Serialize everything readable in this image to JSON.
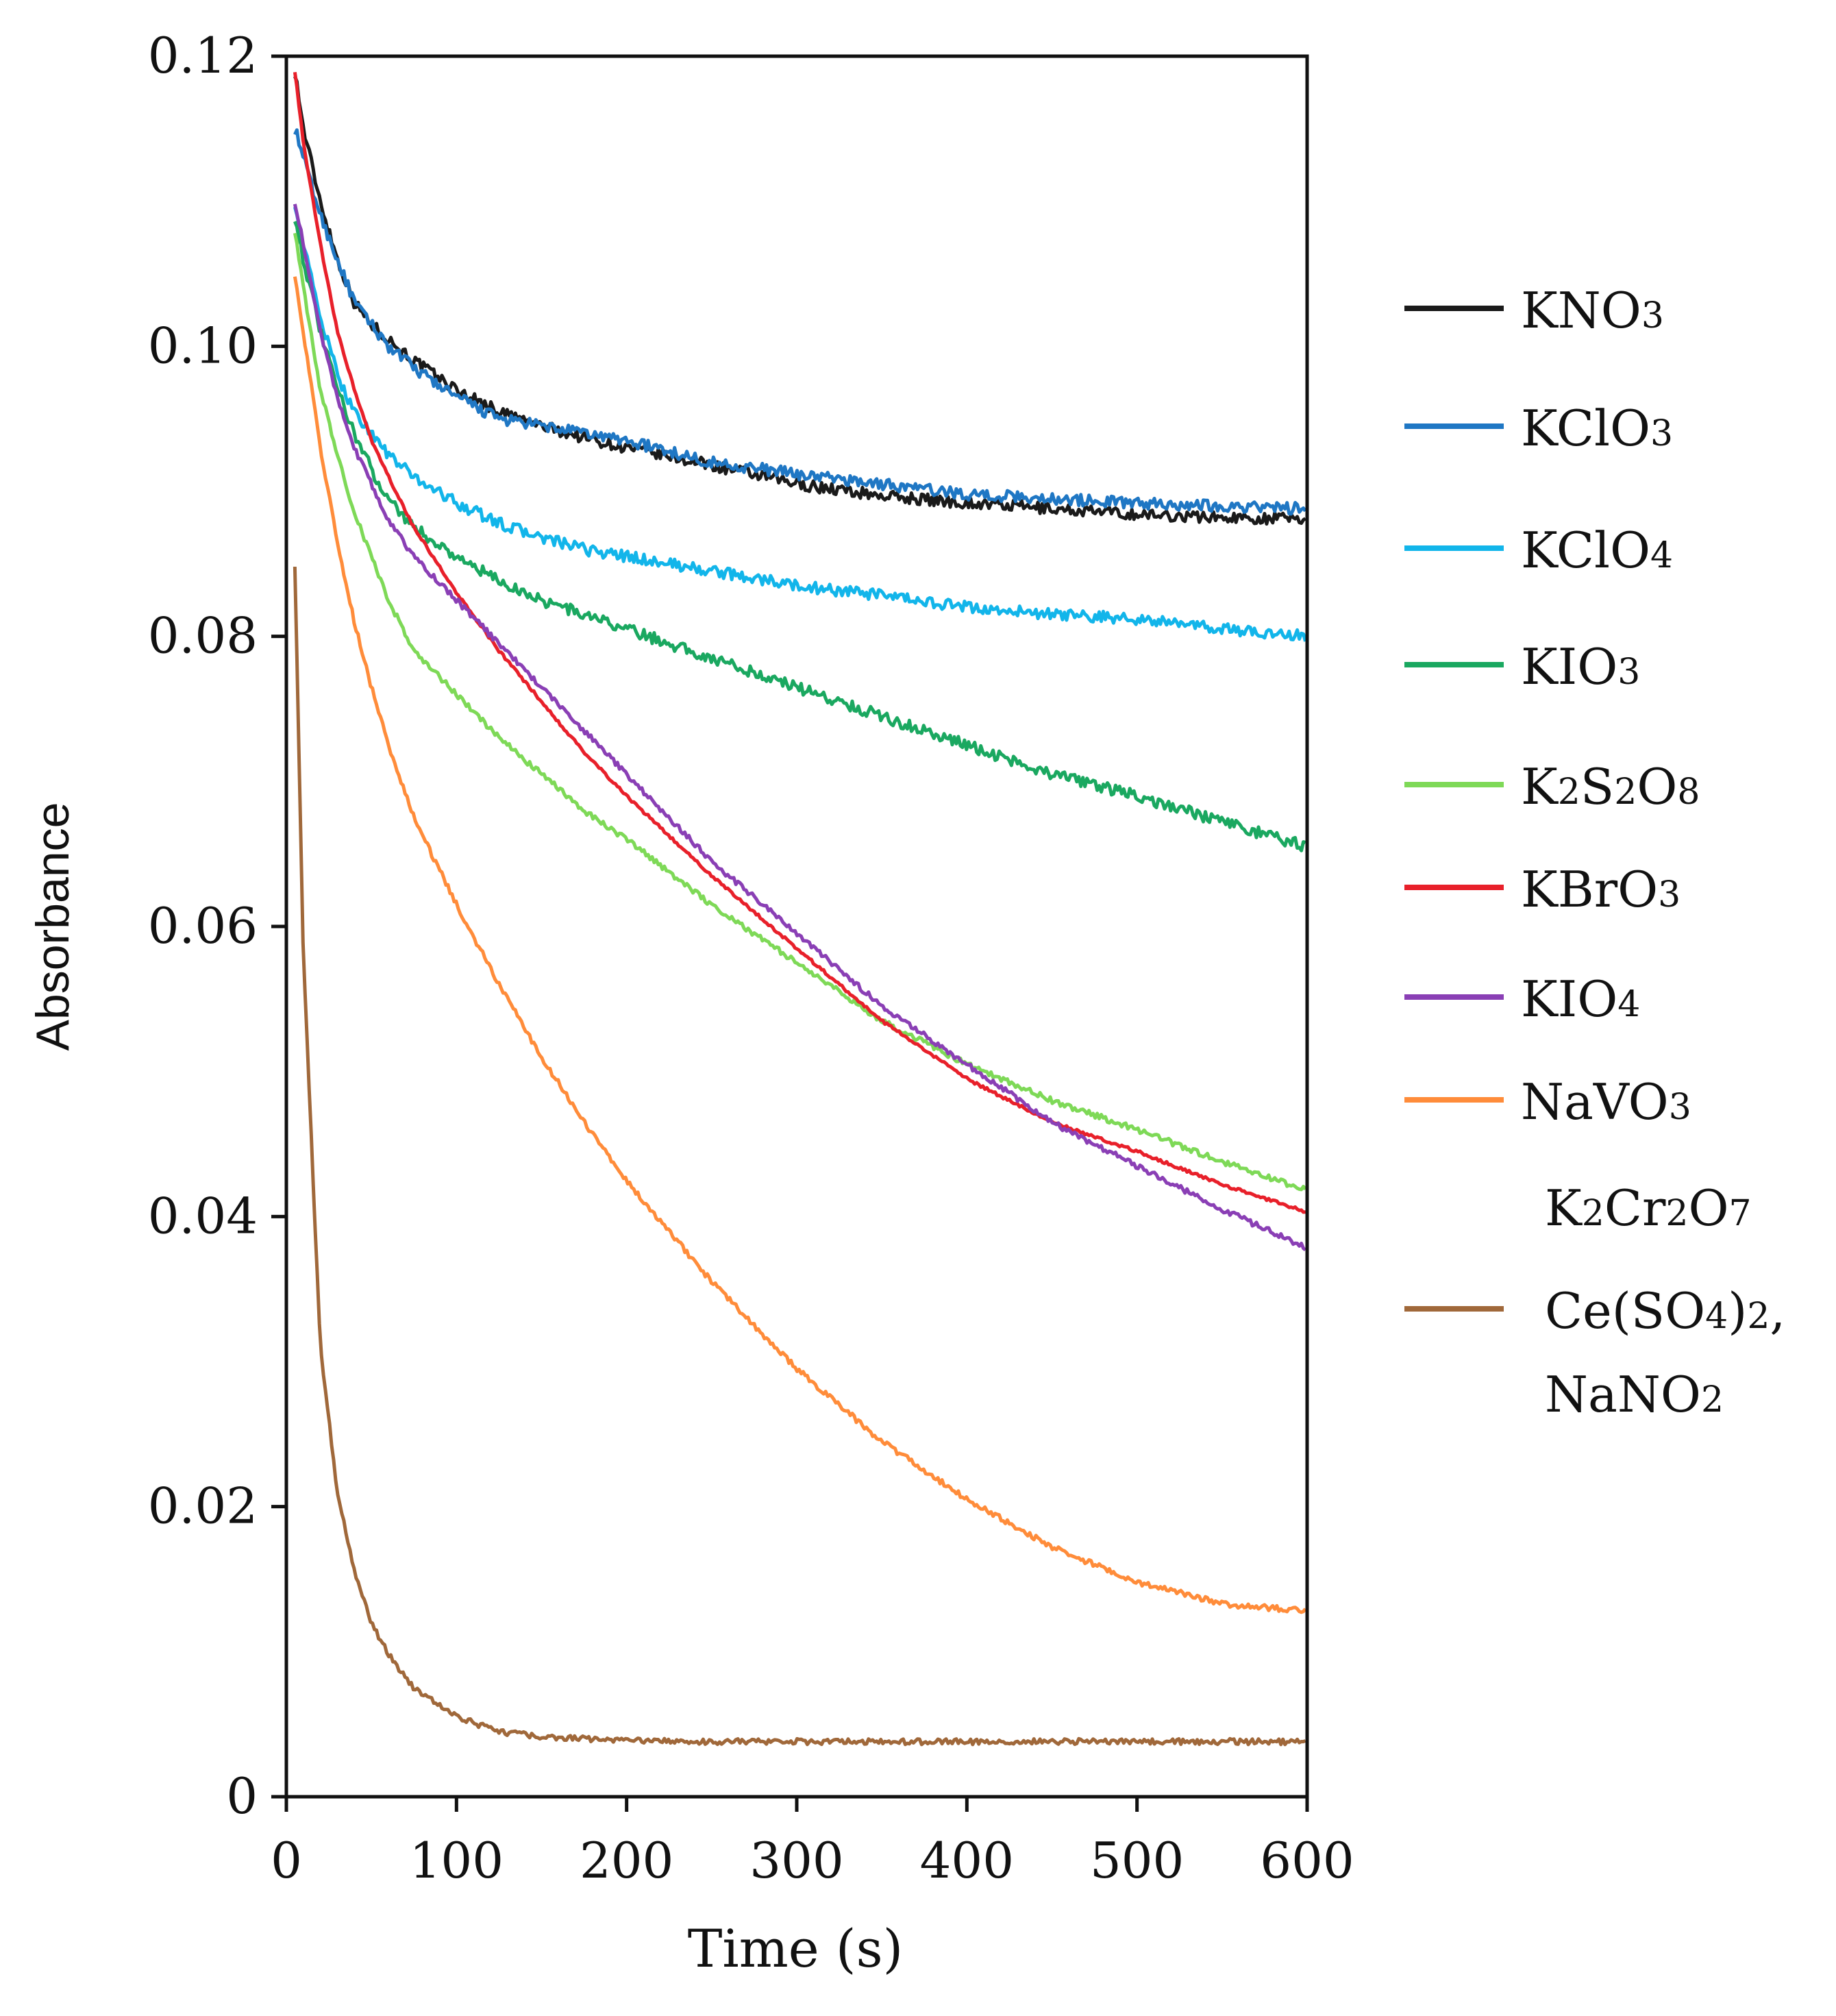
{
  "chart_data": {
    "type": "line",
    "title": "",
    "xlabel": "Time (s)",
    "ylabel": "Absorbance",
    "xlim": [
      0,
      600
    ],
    "ylim": [
      0,
      0.12
    ],
    "x_ticks": [
      0,
      100,
      200,
      300,
      400,
      500,
      600
    ],
    "x_tick_labels": [
      "0",
      "100",
      "200",
      "300",
      "400",
      "500",
      "600"
    ],
    "y_ticks": [
      0,
      0.02,
      0.04,
      0.06,
      0.08,
      0.1,
      0.12
    ],
    "y_tick_labels": [
      "0",
      "0.02",
      "0.04",
      "0.06",
      "0.08",
      "0.10",
      "0.12"
    ],
    "grid": false,
    "legend_position": "right",
    "x": [
      5,
      10,
      20,
      30,
      40,
      50,
      60,
      75,
      100,
      125,
      150,
      175,
      200,
      250,
      300,
      350,
      400,
      450,
      500,
      550,
      600
    ],
    "series": [
      {
        "name": "KNO3",
        "label_main": "KNO",
        "label_sub": "3",
        "color": "#1a1a1a",
        "noise": 0.0004,
        "values": [
          0.119,
          0.115,
          0.11,
          0.106,
          0.103,
          0.1015,
          0.1005,
          0.099,
          0.097,
          0.0955,
          0.0945,
          0.0937,
          0.093,
          0.0918,
          0.0905,
          0.0897,
          0.0892,
          0.0888,
          0.0884,
          0.0882,
          0.0881
        ]
      },
      {
        "name": "KClO3",
        "label_main": "KClO",
        "label_sub": "3",
        "color": "#1f77c4",
        "noise": 0.0004,
        "values": [
          0.115,
          0.113,
          0.109,
          0.106,
          0.103,
          0.1015,
          0.1,
          0.0985,
          0.0965,
          0.095,
          0.0945,
          0.094,
          0.0935,
          0.092,
          0.0912,
          0.0905,
          0.0898,
          0.0895,
          0.0892,
          0.089,
          0.0888
        ]
      },
      {
        "name": "KClO4",
        "label_main": "KClO",
        "label_sub": "4",
        "color": "#12b5ea",
        "noise": 0.0004,
        "values": [
          0.11,
          0.107,
          0.102,
          0.098,
          0.0955,
          0.094,
          0.0925,
          0.091,
          0.0892,
          0.0878,
          0.0868,
          0.086,
          0.0855,
          0.0845,
          0.0835,
          0.0828,
          0.082,
          0.0815,
          0.0812,
          0.0805,
          0.08
        ]
      },
      {
        "name": "KIO3",
        "label_main": "KIO",
        "label_sub": "3",
        "color": "#1aa860",
        "noise": 0.0004,
        "values": [
          0.109,
          0.106,
          0.101,
          0.097,
          0.094,
          0.0915,
          0.0895,
          0.0875,
          0.0855,
          0.0838,
          0.0825,
          0.0815,
          0.0805,
          0.0785,
          0.0765,
          0.0745,
          0.0725,
          0.0705,
          0.069,
          0.0672,
          0.0655
        ]
      },
      {
        "name": "K2S2O8",
        "label_parts": [
          {
            "t": "K"
          },
          {
            "t": "2",
            "sub": true
          },
          {
            "t": "S"
          },
          {
            "t": "2",
            "sub": true
          },
          {
            "t": "O"
          },
          {
            "t": "8",
            "sub": true
          }
        ],
        "color": "#7ed957",
        "noise": 0.0002,
        "values": [
          0.108,
          0.104,
          0.097,
          0.0925,
          0.0885,
          0.0855,
          0.0825,
          0.079,
          0.076,
          0.073,
          0.0705,
          0.068,
          0.066,
          0.0615,
          0.0575,
          0.0535,
          0.0505,
          0.048,
          0.046,
          0.0438,
          0.0418
        ]
      },
      {
        "name": "KBrO3",
        "label_main": "KBrO",
        "label_sub": "3",
        "color": "#e8202a",
        "noise": 0.0001,
        "values": [
          0.119,
          0.114,
          0.107,
          0.101,
          0.097,
          0.0935,
          0.091,
          0.0875,
          0.083,
          0.079,
          0.0755,
          0.072,
          0.069,
          0.0635,
          0.0585,
          0.0535,
          0.0495,
          0.0465,
          0.0445,
          0.0422,
          0.0403
        ]
      },
      {
        "name": "KIO4",
        "label_main": "KIO",
        "label_sub": "4",
        "color": "#8a3fb5",
        "noise": 0.0002,
        "values": [
          0.11,
          0.107,
          0.101,
          0.0965,
          0.093,
          0.0905,
          0.088,
          0.0855,
          0.0825,
          0.0795,
          0.0765,
          0.0735,
          0.0705,
          0.0645,
          0.0595,
          0.0545,
          0.0505,
          0.0465,
          0.0435,
          0.0405,
          0.0378
        ]
      },
      {
        "name": "NaVO3",
        "label_main": "NaVO",
        "label_sub": "3",
        "color": "#ff8c3a",
        "noise": 0.0002,
        "values": [
          0.105,
          0.101,
          0.093,
          0.0865,
          0.081,
          0.0765,
          0.0725,
          0.0675,
          0.0615,
          0.056,
          0.051,
          0.0465,
          0.0425,
          0.0355,
          0.0295,
          0.0245,
          0.0205,
          0.0172,
          0.0148,
          0.0133,
          0.0128
        ]
      },
      {
        "name": "K2Cr2O7 Ce(SO4)2, NaNO2",
        "label_lines": [
          [
            {
              "t": "K"
            },
            {
              "t": "2",
              "sub": true
            },
            {
              "t": "Cr"
            },
            {
              "t": "2",
              "sub": true
            },
            {
              "t": "O"
            },
            {
              "t": "7",
              "sub": true
            }
          ],
          [
            {
              "t": "Ce(SO"
            },
            {
              "t": "4",
              "sub": true
            },
            {
              "t": ")"
            },
            {
              "t": "2",
              "sub": true
            },
            {
              "t": ","
            }
          ],
          [
            {
              "t": "NaNO"
            },
            {
              "t": "2",
              "sub": true
            }
          ]
        ],
        "color": "#a0683a",
        "noise": 0.0002,
        "values": [
          0.085,
          0.058,
          0.031,
          0.021,
          0.0155,
          0.012,
          0.0098,
          0.0075,
          0.0055,
          0.0045,
          0.0041,
          0.004,
          0.0039,
          0.0038,
          0.0038,
          0.0038,
          0.0038,
          0.0038,
          0.0038,
          0.0038,
          0.0038
        ]
      }
    ]
  }
}
